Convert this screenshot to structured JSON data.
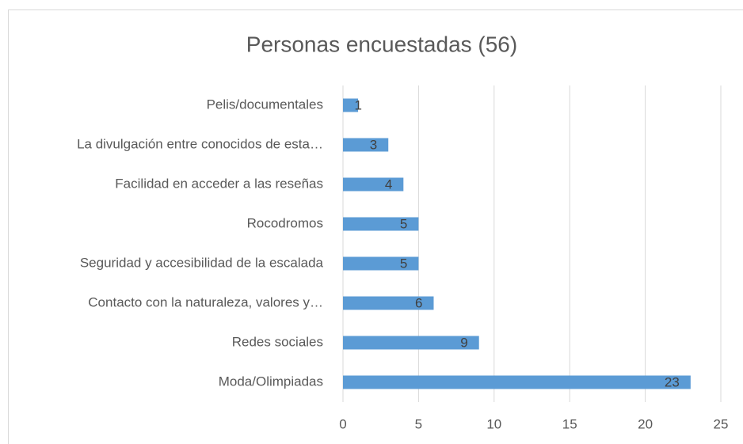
{
  "chart_data": {
    "type": "bar",
    "orientation": "horizontal",
    "title": "Personas encuestadas (56)",
    "categories": [
      "Pelis/documentales",
      "La divulgación entre conocidos de esta…",
      "Facilidad en acceder a las reseñas",
      "Rocodromos",
      "Seguridad y accesibilidad de la escalada",
      "Contacto con la naturaleza, valores y…",
      "Redes sociales",
      "Moda/Olimpiadas"
    ],
    "values": [
      1,
      3,
      4,
      5,
      5,
      6,
      9,
      23
    ],
    "color": "#5b9bd5",
    "xlim": [
      0,
      25
    ],
    "xticks": [
      0,
      5,
      10,
      15,
      20,
      25
    ],
    "grid": true
  }
}
